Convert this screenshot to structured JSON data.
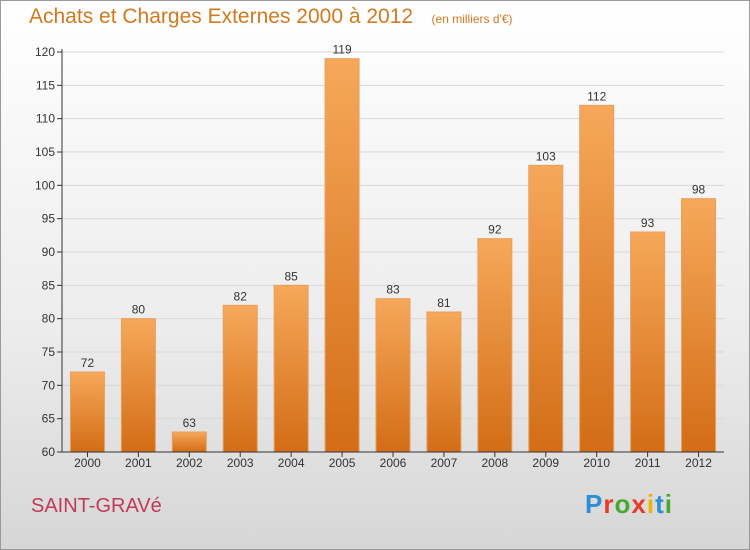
{
  "header": {
    "title": "Achats et Charges Externes 2000 à 2012",
    "unit": "(en milliers d'€)"
  },
  "footer": {
    "commune": "SAINT-GRAVé",
    "brand_letters": [
      "P",
      "r",
      "o",
      "x",
      "i",
      "t",
      "i"
    ],
    "brand_colors": [
      "#2a8ed8",
      "#e83a2a",
      "#4aa832",
      "#e83a2a",
      "#f0b400",
      "#2a8ed8",
      "#4aa832"
    ]
  },
  "colors": {
    "bar_light": "#f6a85a",
    "bar_dark": "#d36d16",
    "axis": "#333333",
    "grid": "#d8d8d8"
  },
  "chart_data": {
    "type": "bar",
    "title": "Achats et Charges Externes 2000 à 2012",
    "categories": [
      "2000",
      "2001",
      "2002",
      "2003",
      "2004",
      "2005",
      "2006",
      "2007",
      "2008",
      "2009",
      "2010",
      "2011",
      "2012"
    ],
    "values": [
      72,
      80,
      63,
      82,
      85,
      119,
      83,
      81,
      92,
      103,
      112,
      93,
      98
    ],
    "ylim": [
      60,
      120
    ],
    "yticks": [
      60,
      65,
      70,
      75,
      80,
      85,
      90,
      95,
      100,
      105,
      110,
      115,
      120
    ],
    "grid": true
  }
}
